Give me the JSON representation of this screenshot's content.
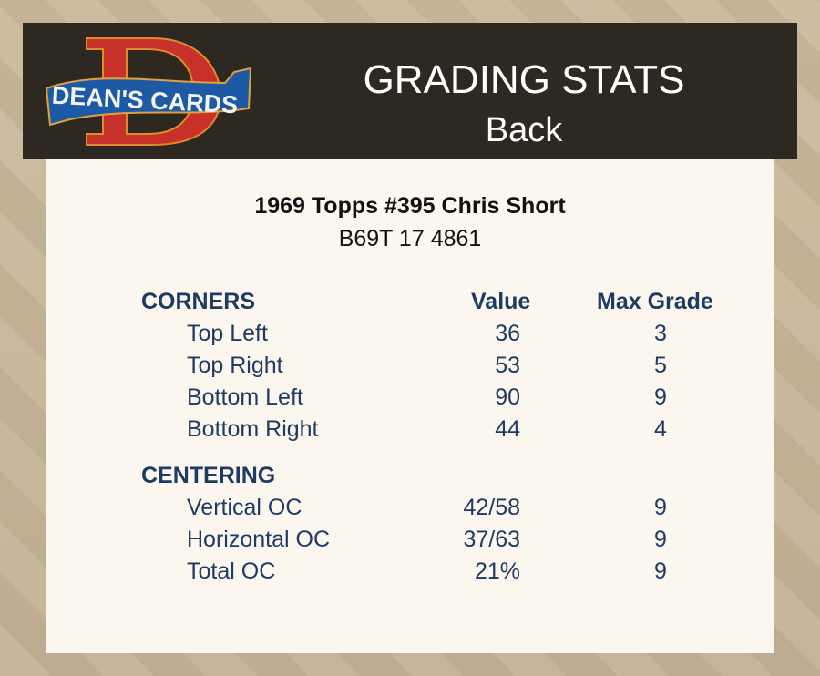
{
  "header": {
    "logo_text": "DEAN'S CARDS",
    "title": "GRADING STATS",
    "subtitle": "Back"
  },
  "card": {
    "name": "1969 Topps #395 Chris Short",
    "code": "B69T 17 4861"
  },
  "columns": {
    "value": "Value",
    "max_grade": "Max Grade"
  },
  "corners": {
    "label": "CORNERS",
    "rows": [
      {
        "label": "Top Left",
        "value": "36",
        "max_grade": "3"
      },
      {
        "label": "Top Right",
        "value": "53",
        "max_grade": "5"
      },
      {
        "label": "Bottom Left",
        "value": "90",
        "max_grade": "9"
      },
      {
        "label": "Bottom Right",
        "value": "44",
        "max_grade": "4"
      }
    ]
  },
  "centering": {
    "label": "CENTERING",
    "rows": [
      {
        "label": "Vertical OC",
        "value": "42/58",
        "max_grade": "9"
      },
      {
        "label": "Horizontal OC",
        "value": "37/63",
        "max_grade": "9"
      },
      {
        "label": "Total OC",
        "value": "21%",
        "max_grade": "9"
      }
    ]
  },
  "colors": {
    "header_bg": "#2e2920",
    "panel_bg": "#fcf7ee",
    "text": "#1f3a64",
    "logo_red": "#c8312a",
    "logo_blue": "#1d5aa6"
  }
}
